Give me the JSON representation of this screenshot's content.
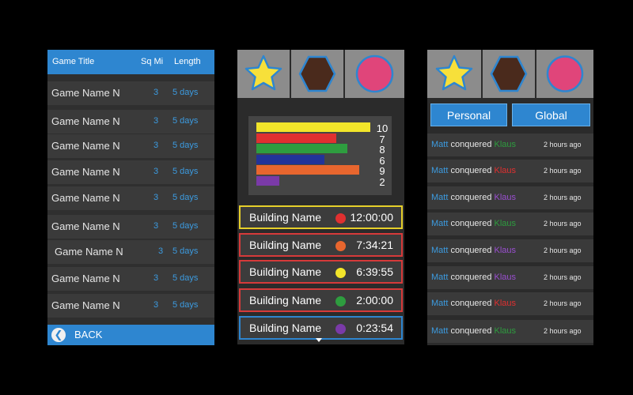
{
  "colors": {
    "accent_blue": "#2e86d0",
    "red": "#e03030",
    "orange": "#e8662e",
    "yellow": "#f2e52a",
    "green": "#2e9d3f",
    "purple": "#7a3aa8",
    "navy": "#223399",
    "star": "#f7e03a",
    "hexagon": "#4a2a1c",
    "circle": "#e0457a"
  },
  "games": {
    "header": {
      "title": "Game Title",
      "sq_mi": "Sq Mi",
      "length": "Length"
    },
    "rows": [
      {
        "name": "Game Name N",
        "sq_mi": "3",
        "length": "5 days"
      },
      {
        "name": "Game Name N",
        "sq_mi": "3",
        "length": "5 days"
      },
      {
        "name": "Game Name N",
        "sq_mi": "3",
        "length": "5 days"
      },
      {
        "name": "Game Name N",
        "sq_mi": "3",
        "length": "5 days"
      },
      {
        "name": "Game Name N",
        "sq_mi": "3",
        "length": "5 days"
      },
      {
        "name": "Game Name N",
        "sq_mi": "3",
        "length": "5 days"
      },
      {
        "name": "Game Name N",
        "sq_mi": "3",
        "length": "5 days"
      },
      {
        "name": "Game Name N",
        "sq_mi": "3",
        "length": "5 days"
      },
      {
        "name": "Game Name N",
        "sq_mi": "3",
        "length": "5 days"
      }
    ],
    "back_label": "BACK",
    "back_icon": "back-arrow-icon"
  },
  "shapes": [
    "star-icon",
    "hexagon-icon",
    "circle-icon"
  ],
  "chart_data": {
    "type": "bar",
    "orientation": "horizontal",
    "values": [
      10,
      7,
      8,
      6,
      9,
      2
    ],
    "colors": [
      "#f2e52a",
      "#e03030",
      "#2e9d3f",
      "#223399",
      "#e8662e",
      "#7a3aa8"
    ],
    "xlim": [
      0,
      10
    ]
  },
  "buildings": {
    "rows": [
      {
        "name": "Building Name",
        "time": "12:00:00",
        "dot": "#e03030",
        "border": "#e6cf2a"
      },
      {
        "name": "Building Name",
        "time": "7:34:21",
        "dot": "#e8662e",
        "border": "#d63a3a"
      },
      {
        "name": "Building Name",
        "time": "6:39:55",
        "dot": "#f2e52a",
        "border": "#d63a3a"
      },
      {
        "name": "Building Name",
        "time": "2:00:00",
        "dot": "#2e9d3f",
        "border": "#d63a3a"
      },
      {
        "name": "Building Name",
        "time": "0:23:54",
        "dot": "#7a3aa8",
        "border": "#2e86d0"
      }
    ]
  },
  "feed": {
    "tabs": {
      "personal": "Personal",
      "global": "Global"
    },
    "rows": [
      {
        "user": "Matt",
        "verb": "conquered",
        "target": "Klaus",
        "target_color": "#2e9d3f",
        "time": "2 hours ago"
      },
      {
        "user": "Matt",
        "verb": "conquered",
        "target": "Klaus",
        "target_color": "#e03030",
        "time": "2 hours ago"
      },
      {
        "user": "Matt",
        "verb": "conquered",
        "target": "Klaus",
        "target_color": "#9a4fd0",
        "time": "2 hours ago"
      },
      {
        "user": "Matt",
        "verb": "conquered",
        "target": "Klaus",
        "target_color": "#2e9d3f",
        "time": "2 hours ago"
      },
      {
        "user": "Matt",
        "verb": "conquered",
        "target": "Klaus",
        "target_color": "#9a4fd0",
        "time": "2 hours ago"
      },
      {
        "user": "Matt",
        "verb": "conquered",
        "target": "Klaus",
        "target_color": "#9a4fd0",
        "time": "2 hours ago"
      },
      {
        "user": "Matt",
        "verb": "conquered",
        "target": "Klaus",
        "target_color": "#e03030",
        "time": "2 hours ago"
      },
      {
        "user": "Matt",
        "verb": "conquered",
        "target": "Klaus",
        "target_color": "#2e9d3f",
        "time": "2 hours ago"
      }
    ]
  }
}
